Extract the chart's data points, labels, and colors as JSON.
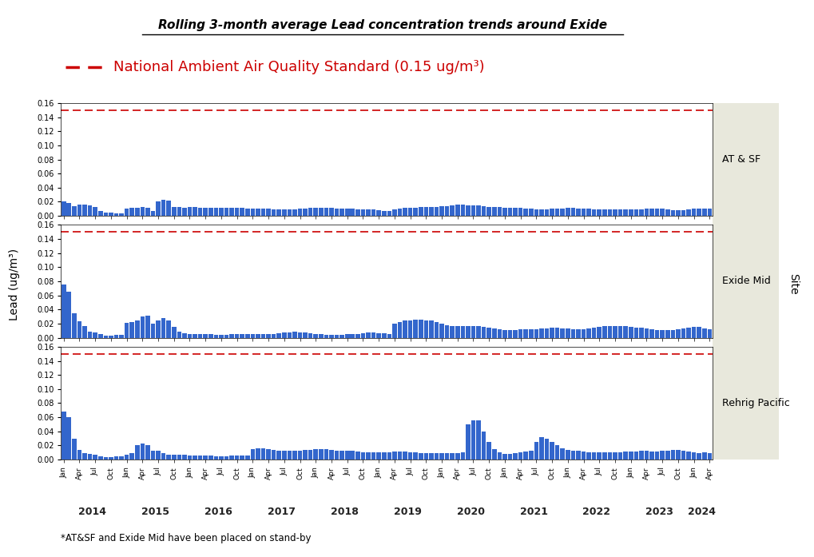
{
  "title": "Rolling 3-month average Lead concentration trends around Exide",
  "naaqs_label": "National Ambient Air Quality Standard (0.15 ug/m³)",
  "naaqs_value": 0.15,
  "ylabel": "Lead (ug/m³)",
  "footnote": "*AT&SF and Exide Mid have been placed on stand-by",
  "bar_color": "#3366CC",
  "naaqs_color": "#CC0000",
  "right_bg_color": "#E8E8DC",
  "sites": [
    "AT & SF",
    "Exide Mid",
    "Rehrig Pacific"
  ],
  "ylim": [
    0,
    0.16
  ],
  "yticks": [
    0,
    0.02,
    0.04,
    0.06,
    0.08,
    0.1,
    0.12,
    0.14,
    0.16
  ],
  "start_year": 2014,
  "end_year": 2024,
  "end_month": 4,
  "AT_SF": [
    0.021,
    0.018,
    0.014,
    0.016,
    0.016,
    0.015,
    0.013,
    0.007,
    0.005,
    0.005,
    0.004,
    0.004,
    0.01,
    0.011,
    0.011,
    0.013,
    0.011,
    0.007,
    0.02,
    0.023,
    0.022,
    0.013,
    0.013,
    0.012,
    0.013,
    0.013,
    0.012,
    0.012,
    0.012,
    0.011,
    0.011,
    0.011,
    0.011,
    0.011,
    0.011,
    0.01,
    0.01,
    0.01,
    0.01,
    0.01,
    0.009,
    0.009,
    0.009,
    0.009,
    0.009,
    0.01,
    0.01,
    0.011,
    0.011,
    0.011,
    0.011,
    0.011,
    0.01,
    0.01,
    0.01,
    0.01,
    0.009,
    0.009,
    0.009,
    0.009,
    0.008,
    0.007,
    0.007,
    0.009,
    0.01,
    0.011,
    0.011,
    0.012,
    0.013,
    0.013,
    0.013,
    0.013,
    0.014,
    0.014,
    0.015,
    0.016,
    0.016,
    0.015,
    0.015,
    0.015,
    0.014,
    0.013,
    0.013,
    0.013,
    0.012,
    0.012,
    0.011,
    0.011,
    0.01,
    0.01,
    0.009,
    0.009,
    0.009,
    0.01,
    0.01,
    0.01,
    0.011,
    0.011,
    0.01,
    0.01,
    0.01,
    0.009,
    0.009,
    0.009,
    0.009,
    0.009,
    0.009,
    0.009,
    0.009,
    0.009,
    0.009,
    0.01,
    0.01,
    0.01,
    0.01,
    0.009,
    0.008,
    0.008,
    0.008,
    0.009,
    0.01,
    0.01,
    0.01,
    0.01,
    0.009,
    0.008,
    0.005,
    0.01
  ],
  "Exide_Mid": [
    0.076,
    0.065,
    0.035,
    0.023,
    0.016,
    0.009,
    0.007,
    0.005,
    0.003,
    0.003,
    0.004,
    0.004,
    0.021,
    0.022,
    0.024,
    0.03,
    0.031,
    0.02,
    0.025,
    0.028,
    0.024,
    0.015,
    0.009,
    0.006,
    0.005,
    0.005,
    0.005,
    0.005,
    0.005,
    0.004,
    0.004,
    0.004,
    0.005,
    0.005,
    0.005,
    0.005,
    0.005,
    0.005,
    0.005,
    0.005,
    0.005,
    0.006,
    0.007,
    0.008,
    0.009,
    0.008,
    0.007,
    0.006,
    0.005,
    0.005,
    0.004,
    0.004,
    0.004,
    0.004,
    0.005,
    0.005,
    0.005,
    0.006,
    0.007,
    0.007,
    0.006,
    0.006,
    0.005,
    0.02,
    0.022,
    0.024,
    0.025,
    0.026,
    0.026,
    0.025,
    0.024,
    0.022,
    0.02,
    0.018,
    0.016,
    0.016,
    0.016,
    0.016,
    0.017,
    0.016,
    0.015,
    0.014,
    0.013,
    0.012,
    0.011,
    0.011,
    0.011,
    0.012,
    0.012,
    0.012,
    0.012,
    0.013,
    0.013,
    0.014,
    0.014,
    0.013,
    0.013,
    0.012,
    0.012,
    0.012,
    0.013,
    0.014,
    0.015,
    0.016,
    0.017,
    0.017,
    0.017,
    0.016,
    0.015,
    0.014,
    0.014,
    0.013,
    0.012,
    0.011,
    0.011,
    0.011,
    0.011,
    0.012,
    0.013,
    0.014,
    0.015,
    0.015,
    0.013,
    0.012,
    0.01,
    0.01,
    0.01,
    0.01
  ],
  "Rehrig_Pacific": [
    0.068,
    0.06,
    0.03,
    0.014,
    0.009,
    0.008,
    0.007,
    0.005,
    0.003,
    0.003,
    0.004,
    0.004,
    0.007,
    0.009,
    0.02,
    0.023,
    0.02,
    0.012,
    0.012,
    0.009,
    0.007,
    0.007,
    0.007,
    0.007,
    0.006,
    0.006,
    0.006,
    0.006,
    0.006,
    0.005,
    0.005,
    0.005,
    0.006,
    0.006,
    0.006,
    0.006,
    0.015,
    0.016,
    0.016,
    0.015,
    0.014,
    0.013,
    0.012,
    0.012,
    0.013,
    0.013,
    0.014,
    0.014,
    0.015,
    0.015,
    0.015,
    0.014,
    0.013,
    0.012,
    0.012,
    0.012,
    0.011,
    0.01,
    0.01,
    0.01,
    0.01,
    0.01,
    0.01,
    0.011,
    0.011,
    0.011,
    0.01,
    0.01,
    0.009,
    0.009,
    0.009,
    0.009,
    0.009,
    0.009,
    0.009,
    0.009,
    0.01,
    0.05,
    0.056,
    0.055,
    0.04,
    0.025,
    0.015,
    0.01,
    0.008,
    0.008,
    0.009,
    0.01,
    0.011,
    0.012,
    0.025,
    0.032,
    0.03,
    0.025,
    0.02,
    0.016,
    0.014,
    0.013,
    0.012,
    0.011,
    0.01,
    0.01,
    0.01,
    0.01,
    0.01,
    0.01,
    0.01,
    0.011,
    0.011,
    0.011,
    0.012,
    0.012,
    0.011,
    0.011,
    0.012,
    0.013,
    0.014,
    0.014,
    0.012,
    0.011,
    0.01,
    0.009,
    0.01,
    0.009,
    0.009,
    0.009,
    0.013,
    0.017
  ]
}
